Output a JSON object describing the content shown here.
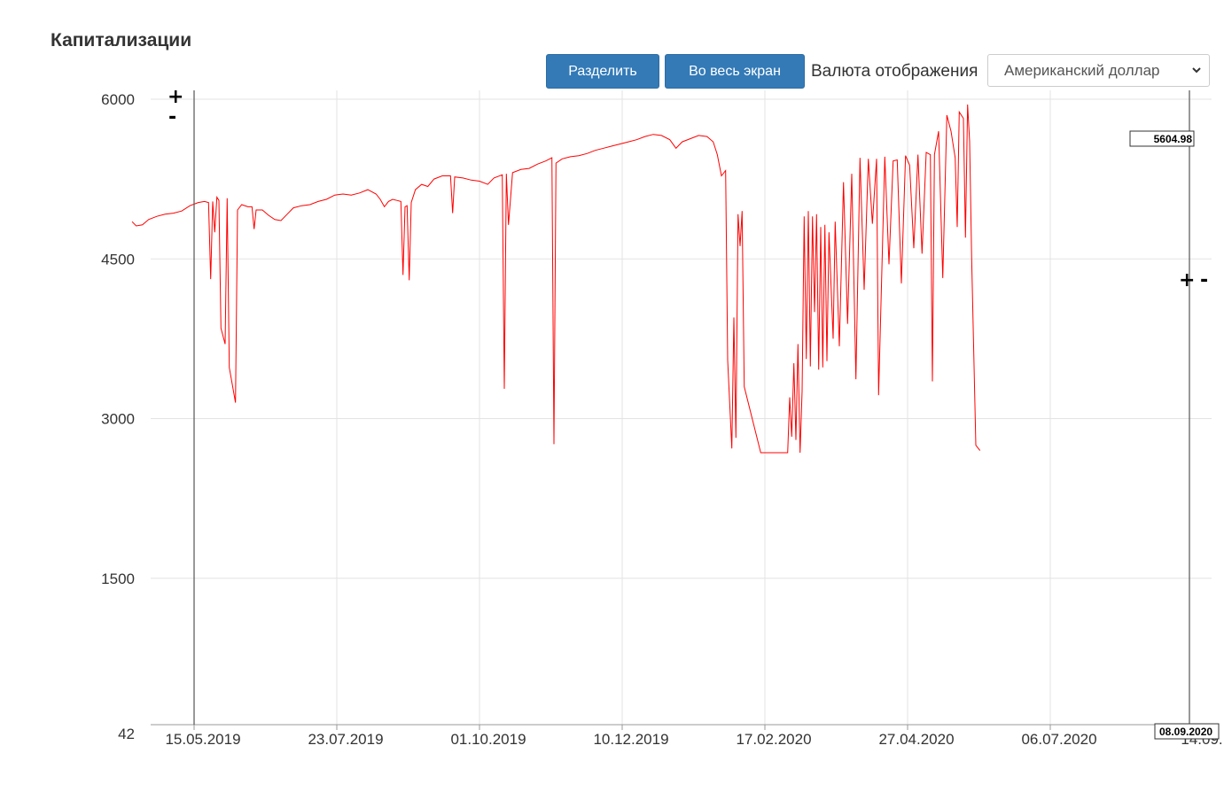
{
  "header": {
    "title": "Капитализации"
  },
  "toolbar": {
    "split_label": "Разделить",
    "fullscreen_label": "Во весь экран",
    "currency_label": "Валюта отображения",
    "currency_selected": "Американский доллар"
  },
  "controls": {
    "zoom_in": "+",
    "zoom_out": "-"
  },
  "chart_data": {
    "type": "line",
    "title": "",
    "xlabel": "",
    "ylabel": "",
    "y_ticks": [
      "6000",
      "4500",
      "3000",
      "1500",
      "42"
    ],
    "x_ticks": [
      "15.05.2019",
      "23.07.2019",
      "01.10.2019",
      "10.12.2019",
      "17.02.2020",
      "27.04.2020",
      "06.07.2020",
      "14.09."
    ],
    "ylim": [
      42,
      6000
    ],
    "grid": true,
    "line_color": "#ff0000",
    "x_unit": "days since 15.05.2019",
    "series": [
      {
        "values": [
          [
            -30,
            4850
          ],
          [
            -28,
            4810
          ],
          [
            -25,
            4820
          ],
          [
            -22,
            4870
          ],
          [
            -18,
            4900
          ],
          [
            -14,
            4920
          ],
          [
            -10,
            4930
          ],
          [
            -6,
            4950
          ],
          [
            -2,
            5000
          ],
          [
            2,
            5030
          ],
          [
            5,
            5040
          ],
          [
            7,
            5030
          ],
          [
            8,
            4310
          ],
          [
            9,
            5040
          ],
          [
            10,
            4750
          ],
          [
            11,
            5080
          ],
          [
            12,
            5050
          ],
          [
            13,
            3850
          ],
          [
            15,
            3700
          ],
          [
            16,
            5070
          ],
          [
            17,
            3480
          ],
          [
            20,
            3150
          ],
          [
            21,
            4960
          ],
          [
            23,
            5010
          ],
          [
            26,
            4990
          ],
          [
            28,
            4990
          ],
          [
            29,
            4780
          ],
          [
            30,
            4960
          ],
          [
            33,
            4960
          ],
          [
            36,
            4910
          ],
          [
            39,
            4870
          ],
          [
            42,
            4860
          ],
          [
            45,
            4920
          ],
          [
            48,
            4980
          ],
          [
            52,
            5000
          ],
          [
            56,
            5010
          ],
          [
            60,
            5040
          ],
          [
            64,
            5060
          ],
          [
            68,
            5100
          ],
          [
            72,
            5110
          ],
          [
            76,
            5100
          ],
          [
            80,
            5120
          ],
          [
            84,
            5150
          ],
          [
            88,
            5110
          ],
          [
            90,
            5060
          ],
          [
            92,
            4990
          ],
          [
            94,
            5040
          ],
          [
            96,
            5060
          ],
          [
            98,
            5050
          ],
          [
            100,
            5040
          ],
          [
            101,
            4350
          ],
          [
            102,
            4990
          ],
          [
            103,
            5000
          ],
          [
            104,
            4300
          ],
          [
            105,
            5030
          ],
          [
            107,
            5150
          ],
          [
            110,
            5200
          ],
          [
            113,
            5180
          ],
          [
            116,
            5250
          ],
          [
            120,
            5280
          ],
          [
            124,
            5280
          ],
          [
            125,
            4930
          ],
          [
            126,
            5270
          ],
          [
            130,
            5260
          ],
          [
            134,
            5240
          ],
          [
            138,
            5230
          ],
          [
            142,
            5200
          ],
          [
            145,
            5260
          ],
          [
            149,
            5290
          ],
          [
            150,
            3280
          ],
          [
            151,
            5300
          ],
          [
            152,
            4820
          ],
          [
            154,
            5310
          ],
          [
            158,
            5340
          ],
          [
            162,
            5350
          ],
          [
            166,
            5390
          ],
          [
            170,
            5420
          ],
          [
            173,
            5450
          ],
          [
            174,
            2760
          ],
          [
            175,
            5400
          ],
          [
            178,
            5440
          ],
          [
            182,
            5460
          ],
          [
            186,
            5470
          ],
          [
            190,
            5490
          ],
          [
            194,
            5520
          ],
          [
            198,
            5540
          ],
          [
            202,
            5560
          ],
          [
            206,
            5580
          ],
          [
            210,
            5600
          ],
          [
            214,
            5620
          ],
          [
            218,
            5650
          ],
          [
            222,
            5670
          ],
          [
            226,
            5660
          ],
          [
            230,
            5620
          ],
          [
            233,
            5540
          ],
          [
            236,
            5600
          ],
          [
            240,
            5630
          ],
          [
            244,
            5660
          ],
          [
            248,
            5650
          ],
          [
            251,
            5600
          ],
          [
            253,
            5480
          ],
          [
            255,
            5280
          ],
          [
            257,
            5330
          ],
          [
            258,
            3550
          ],
          [
            260,
            2720
          ],
          [
            261,
            3950
          ],
          [
            262,
            2820
          ],
          [
            263,
            4920
          ],
          [
            264,
            4620
          ],
          [
            265,
            4950
          ],
          [
            266,
            3300
          ],
          [
            274,
            2680
          ],
          [
            287,
            2680
          ],
          [
            288,
            3200
          ],
          [
            289,
            2830
          ],
          [
            290,
            3520
          ],
          [
            291,
            2800
          ],
          [
            292,
            3700
          ],
          [
            293,
            2680
          ],
          [
            294,
            3260
          ],
          [
            295,
            4900
          ],
          [
            296,
            3560
          ],
          [
            297,
            4950
          ],
          [
            298,
            3490
          ],
          [
            299,
            4900
          ],
          [
            300,
            4000
          ],
          [
            301,
            4920
          ],
          [
            302,
            3460
          ],
          [
            303,
            4800
          ],
          [
            304,
            3480
          ],
          [
            305,
            4820
          ],
          [
            306,
            3540
          ],
          [
            307,
            4750
          ],
          [
            309,
            3750
          ],
          [
            310,
            4850
          ],
          [
            312,
            3680
          ],
          [
            314,
            5220
          ],
          [
            316,
            3890
          ],
          [
            318,
            5300
          ],
          [
            320,
            3370
          ],
          [
            322,
            5450
          ],
          [
            324,
            4210
          ],
          [
            326,
            5440
          ],
          [
            328,
            4830
          ],
          [
            330,
            5440
          ],
          [
            331,
            3220
          ],
          [
            334,
            5460
          ],
          [
            336,
            4450
          ],
          [
            338,
            5420
          ],
          [
            340,
            5430
          ],
          [
            342,
            4270
          ],
          [
            344,
            5470
          ],
          [
            346,
            5380
          ],
          [
            348,
            4600
          ],
          [
            350,
            5480
          ],
          [
            352,
            4550
          ],
          [
            354,
            5500
          ],
          [
            356,
            5480
          ],
          [
            357,
            3350
          ],
          [
            358,
            5480
          ],
          [
            360,
            5700
          ],
          [
            362,
            4320
          ],
          [
            364,
            5850
          ],
          [
            366,
            5700
          ],
          [
            368,
            5450
          ],
          [
            369,
            4800
          ],
          [
            370,
            5880
          ],
          [
            372,
            5820
          ],
          [
            373,
            4700
          ],
          [
            374,
            5950
          ],
          [
            375,
            5605
          ],
          [
            376,
            4500
          ],
          [
            378,
            2750
          ],
          [
            380,
            2700
          ]
        ]
      }
    ],
    "tooltip": {
      "value": "5604.98",
      "date": "08.09.2020"
    }
  }
}
